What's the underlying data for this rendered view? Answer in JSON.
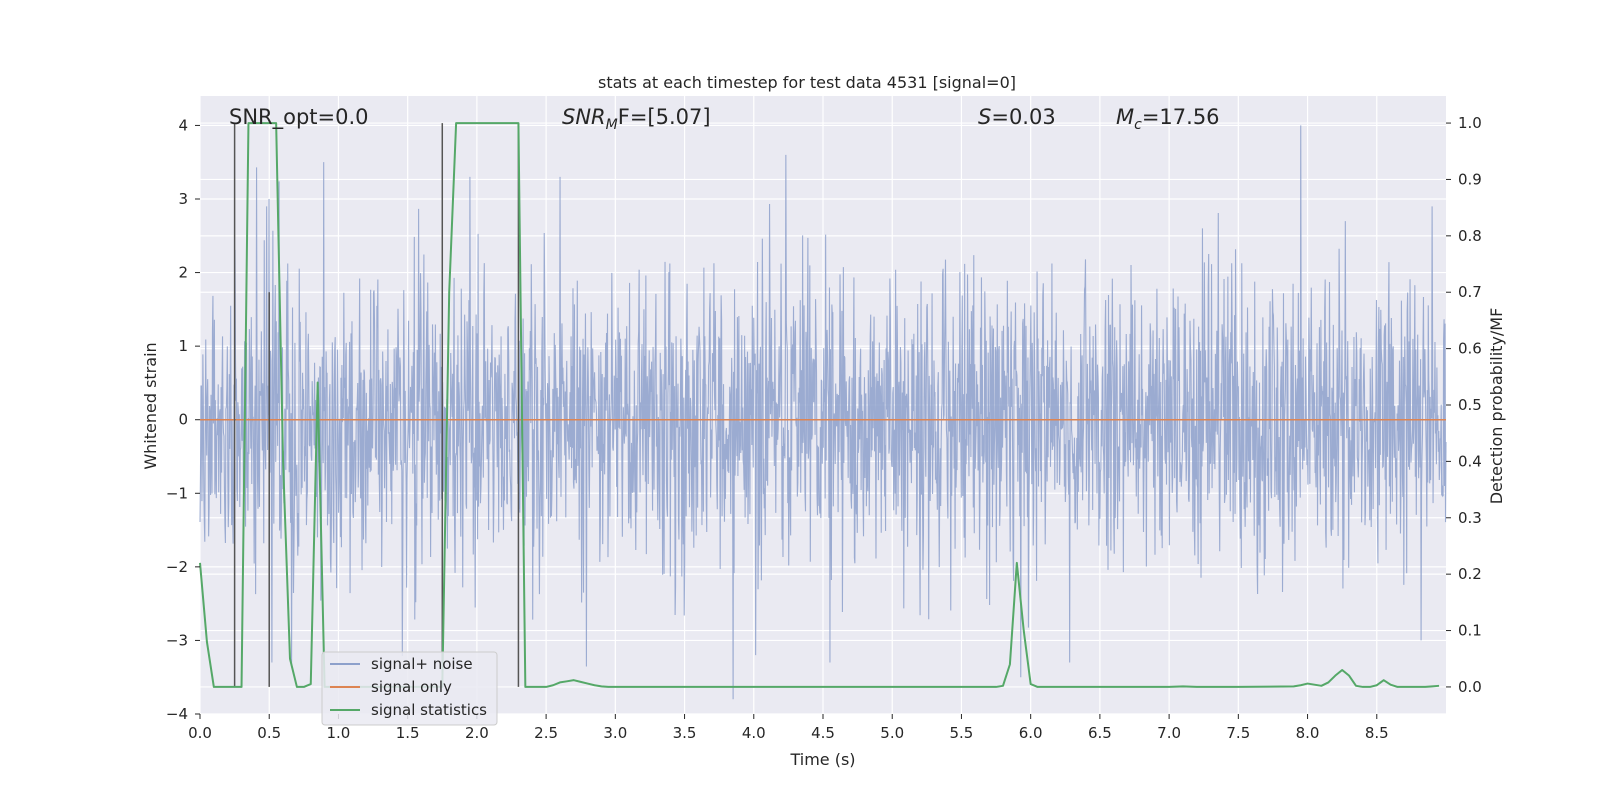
{
  "chart_data": {
    "type": "line",
    "title": "stats at each timestep for test data 4531 [signal=0]",
    "xlabel": "Time (s)",
    "ylabel": "Whitened strain",
    "y2label": "Detection probability/MF",
    "xlim": [
      0.0,
      9.0
    ],
    "ylim": [
      -4.0,
      4.4
    ],
    "y2lim": [
      -0.048,
      1.048
    ],
    "xticks": [
      0.0,
      0.5,
      1.0,
      1.5,
      2.0,
      2.5,
      3.0,
      3.5,
      4.0,
      4.5,
      5.0,
      5.5,
      6.0,
      6.5,
      7.0,
      7.5,
      8.0,
      8.5
    ],
    "xtick_labels": [
      "0.0",
      "0.5",
      "1.0",
      "1.5",
      "2.0",
      "2.5",
      "3.0",
      "3.5",
      "4.0",
      "4.5",
      "5.0",
      "5.5",
      "6.0",
      "6.5",
      "7.0",
      "7.5",
      "8.0",
      "8.5"
    ],
    "yticks": [
      -4,
      -3,
      -2,
      -1,
      0,
      1,
      2,
      3,
      4
    ],
    "ytick_labels": [
      "−4",
      "−3",
      "−2",
      "−1",
      "0",
      "1",
      "2",
      "3",
      "4"
    ],
    "y2ticks": [
      0.0,
      0.1,
      0.2,
      0.3,
      0.4,
      0.5,
      0.6,
      0.7,
      0.8,
      0.9,
      1.0
    ],
    "y2tick_labels": [
      "0.0",
      "0.1",
      "0.2",
      "0.3",
      "0.4",
      "0.5",
      "0.6",
      "0.7",
      "0.8",
      "0.9",
      "1.0"
    ],
    "grid": true,
    "legend_position": "bottom-left",
    "annotations": {
      "snr_opt": "SNR_opt=0.0",
      "snr_mf_base": "SNR",
      "snr_mf_sub": "M",
      "snr_mf_rest": "F=[5.07]",
      "s_base": "S",
      "s_rest": "=0.03",
      "mc_base": "M",
      "mc_sub": "c",
      "mc_rest": "=17.56"
    },
    "series": [
      {
        "name": "signal+ noise",
        "color": "#8da0cb",
        "description": "whitened strain noise, approximately Gaussian with std 1, range about -3.8 to 4.0",
        "notable_peaks": [
          [
            0.5,
            3.0
          ],
          [
            0.48,
            2.9
          ],
          [
            1.95,
            3.3
          ],
          [
            2.6,
            3.3
          ],
          [
            4.23,
            3.6
          ],
          [
            5.93,
            3.3
          ],
          [
            7.95,
            4.0
          ],
          [
            8.9,
            2.9
          ]
        ],
        "notable_troughs": [
          [
            0.52,
            -3.3
          ],
          [
            3.85,
            -3.8
          ],
          [
            4.55,
            -3.3
          ],
          [
            5.93,
            -3.5
          ],
          [
            6.28,
            -3.3
          ],
          [
            8.82,
            -3.0
          ]
        ]
      },
      {
        "name": "signal only",
        "color": "#dd8452",
        "x": [
          0.0,
          9.0
        ],
        "y": [
          0.0,
          0.0
        ]
      },
      {
        "name": "signal statistics",
        "color": "#55a868",
        "axis": "right",
        "x": [
          0.0,
          0.05,
          0.1,
          0.15,
          0.2,
          0.25,
          0.3,
          0.35,
          0.4,
          0.45,
          0.5,
          0.55,
          0.6,
          0.65,
          0.7,
          0.75,
          0.8,
          0.85,
          0.9,
          0.95,
          1.0,
          1.05,
          1.1,
          1.15,
          1.2,
          1.25,
          1.3,
          1.35,
          1.4,
          1.45,
          1.5,
          1.55,
          1.6,
          1.65,
          1.7,
          1.75,
          1.8,
          1.85,
          1.9,
          1.95,
          2.0,
          2.05,
          2.1,
          2.15,
          2.2,
          2.25,
          2.3,
          2.35,
          2.4,
          2.45,
          2.5,
          2.55,
          2.6,
          2.65,
          2.7,
          2.75,
          2.8,
          2.85,
          2.9,
          2.95,
          3.0,
          3.5,
          4.0,
          4.5,
          5.0,
          5.5,
          5.75,
          5.8,
          5.85,
          5.9,
          5.95,
          6.0,
          6.05,
          6.1,
          6.5,
          7.0,
          7.1,
          7.2,
          7.5,
          7.9,
          7.95,
          8.0,
          8.05,
          8.1,
          8.15,
          8.2,
          8.25,
          8.3,
          8.35,
          8.4,
          8.45,
          8.5,
          8.55,
          8.6,
          8.65,
          8.7,
          8.75,
          8.8,
          8.85,
          8.9,
          8.95
        ],
        "y": [
          0.22,
          0.08,
          0.0,
          0.0,
          0.0,
          0.0,
          0.0,
          1.0,
          1.0,
          1.0,
          1.0,
          1.0,
          0.4,
          0.05,
          0.0,
          0.0,
          0.005,
          0.54,
          0.0,
          0.0,
          0.0,
          0.0,
          0.0,
          0.0,
          0.0,
          0.0,
          0.0,
          0.0,
          0.0,
          0.0,
          0.0,
          0.0,
          0.0,
          0.0,
          0.0,
          0.0,
          0.7,
          1.0,
          1.0,
          1.0,
          1.0,
          1.0,
          1.0,
          1.0,
          1.0,
          1.0,
          1.0,
          0.0,
          0.0,
          0.0,
          0.0,
          0.003,
          0.008,
          0.01,
          0.012,
          0.009,
          0.006,
          0.003,
          0.001,
          0.0,
          0.0,
          0.0,
          0.0,
          0.0,
          0.0,
          0.0,
          0.0,
          0.002,
          0.04,
          0.22,
          0.1,
          0.005,
          0.0,
          0.0,
          0.0,
          0.0,
          0.001,
          0.0,
          0.0,
          0.001,
          0.003,
          0.006,
          0.004,
          0.002,
          0.008,
          0.02,
          0.03,
          0.02,
          0.002,
          0.0,
          0.0,
          0.003,
          0.012,
          0.004,
          0.0,
          0.0,
          0.0,
          0.0,
          0.0,
          0.001,
          0.002
        ]
      }
    ],
    "vertical_markers": {
      "color": "#555555",
      "segments": [
        {
          "x": 0.25,
          "y_from": 0.0,
          "y_to": 1.0
        },
        {
          "x": 0.5,
          "y_from": 0.0,
          "y_to": 0.7
        },
        {
          "x": 1.75,
          "y_from": 0.0,
          "y_to": 1.0
        },
        {
          "x": 2.3,
          "y_from": 0.0,
          "y_to": 1.0
        }
      ]
    }
  }
}
